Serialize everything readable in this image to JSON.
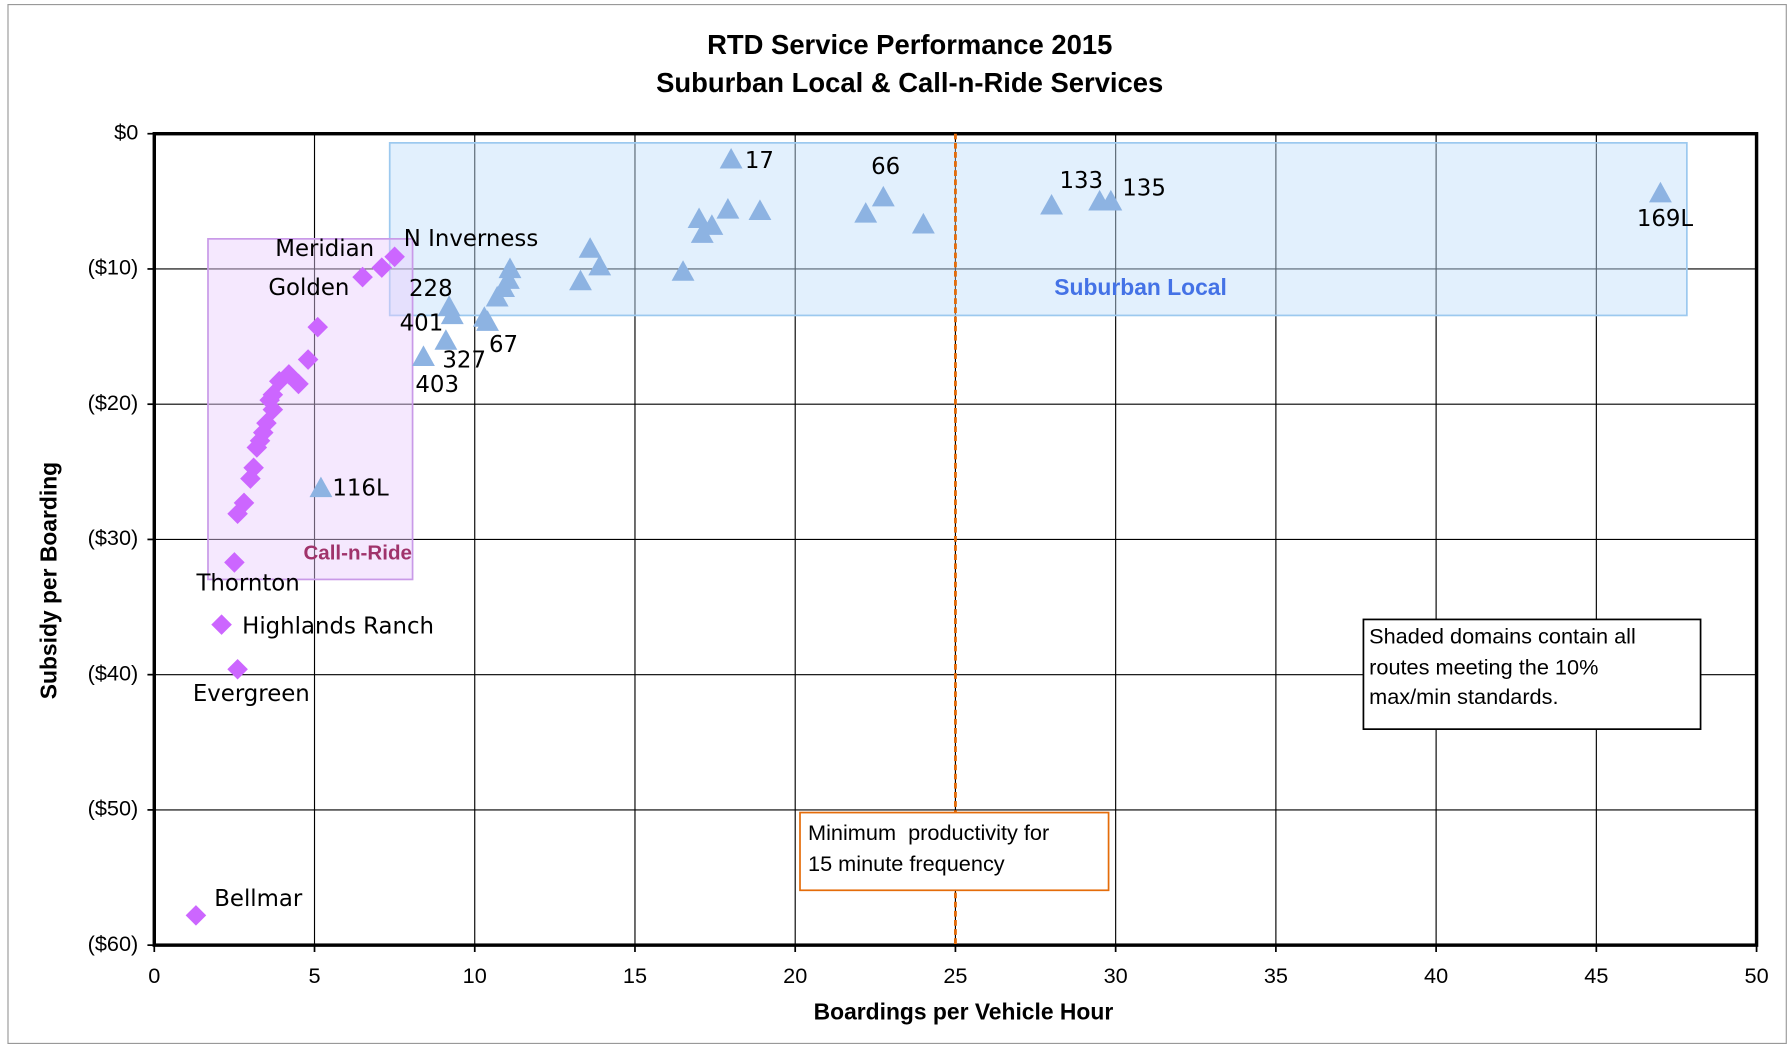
{
  "chart_data": {
    "type": "scatter",
    "title": [
      "RTD Service Performance 2015",
      "Suburban Local & Call-n-Ride Services"
    ],
    "x_label": "Boardings per Vehicle Hour",
    "y_label": "Subsidy per Boarding",
    "xlim": [
      0,
      50
    ],
    "xticks": [
      0,
      5,
      10,
      15,
      20,
      25,
      30,
      35,
      40,
      45,
      50
    ],
    "ylim": [
      -60,
      0
    ],
    "yticks": [
      {
        "value": -60,
        "label": "($60)"
      },
      {
        "value": -50,
        "label": "($50)"
      },
      {
        "value": -40,
        "label": "($40)"
      },
      {
        "value": -30,
        "label": "($30)"
      },
      {
        "value": -20,
        "label": "($20)"
      },
      {
        "value": -10,
        "label": "($10)"
      },
      {
        "value": 0,
        "label": "$0"
      }
    ],
    "grid": true,
    "series": [
      {
        "name": "Suburban Local",
        "marker": "triangle",
        "color": "#8db3e2",
        "x": [
          18.0,
          22.75,
          28.0,
          29.5,
          29.85,
          47.0,
          24.0,
          22.2,
          18.9,
          17.9,
          17.0,
          17.4,
          17.1,
          16.5,
          13.6,
          13.9,
          13.3,
          11.1,
          11.05,
          10.9,
          10.7,
          10.4,
          10.3,
          9.2,
          9.3,
          9.1,
          8.4,
          5.2
        ],
        "values": [
          -1.9,
          -4.7,
          -5.3,
          -5.0,
          -5.0,
          -4.4,
          -6.7,
          -5.9,
          -5.7,
          -5.6,
          -6.3,
          -6.8,
          -7.4,
          -10.2,
          -8.5,
          -9.8,
          -10.9,
          -10.0,
          -10.8,
          -11.4,
          -12.1,
          -13.9,
          -13.6,
          -12.8,
          -13.4,
          -15.3,
          -16.5,
          -26.2
        ],
        "labels": [
          "17",
          "66",
          "133",
          null,
          "135",
          "169L",
          null,
          null,
          null,
          null,
          null,
          null,
          null,
          null,
          null,
          null,
          null,
          null,
          null,
          null,
          null,
          "67",
          null,
          "228",
          "401",
          "327",
          "403",
          "116L"
        ]
      },
      {
        "name": "Call-n-Ride",
        "marker": "diamond",
        "color": "#cc66ff",
        "x": [
          7.5,
          7.1,
          6.5,
          5.1,
          4.8,
          4.5,
          4.2,
          3.9,
          3.7,
          3.6,
          3.7,
          3.5,
          3.4,
          3.3,
          3.2,
          3.1,
          3.0,
          2.8,
          2.6,
          2.5,
          2.1,
          2.6,
          1.3
        ],
        "values": [
          -9.1,
          -9.9,
          -10.6,
          -14.3,
          -16.7,
          -18.5,
          -17.8,
          -18.3,
          -19.3,
          -19.7,
          -20.4,
          -21.4,
          -22.1,
          -22.7,
          -23.2,
          -24.7,
          -25.5,
          -27.3,
          -28.1,
          -31.7,
          -36.3,
          -39.6,
          -57.8
        ],
        "labels": [
          "N Inverness",
          "Meridian",
          "Golden",
          null,
          null,
          null,
          null,
          null,
          null,
          null,
          null,
          null,
          null,
          null,
          null,
          null,
          null,
          null,
          null,
          "Thornton",
          "Highlands Ranch",
          "Evergreen",
          "Bellmar"
        ]
      }
    ],
    "reference_line": {
      "x": 25,
      "color": "#e46c0a",
      "label": [
        "Minimum  productivity for",
        "15 minute frequency"
      ]
    },
    "note": [
      "Shaded domains contain all",
      "routes meeting the 10%",
      "max/min standards."
    ]
  }
}
